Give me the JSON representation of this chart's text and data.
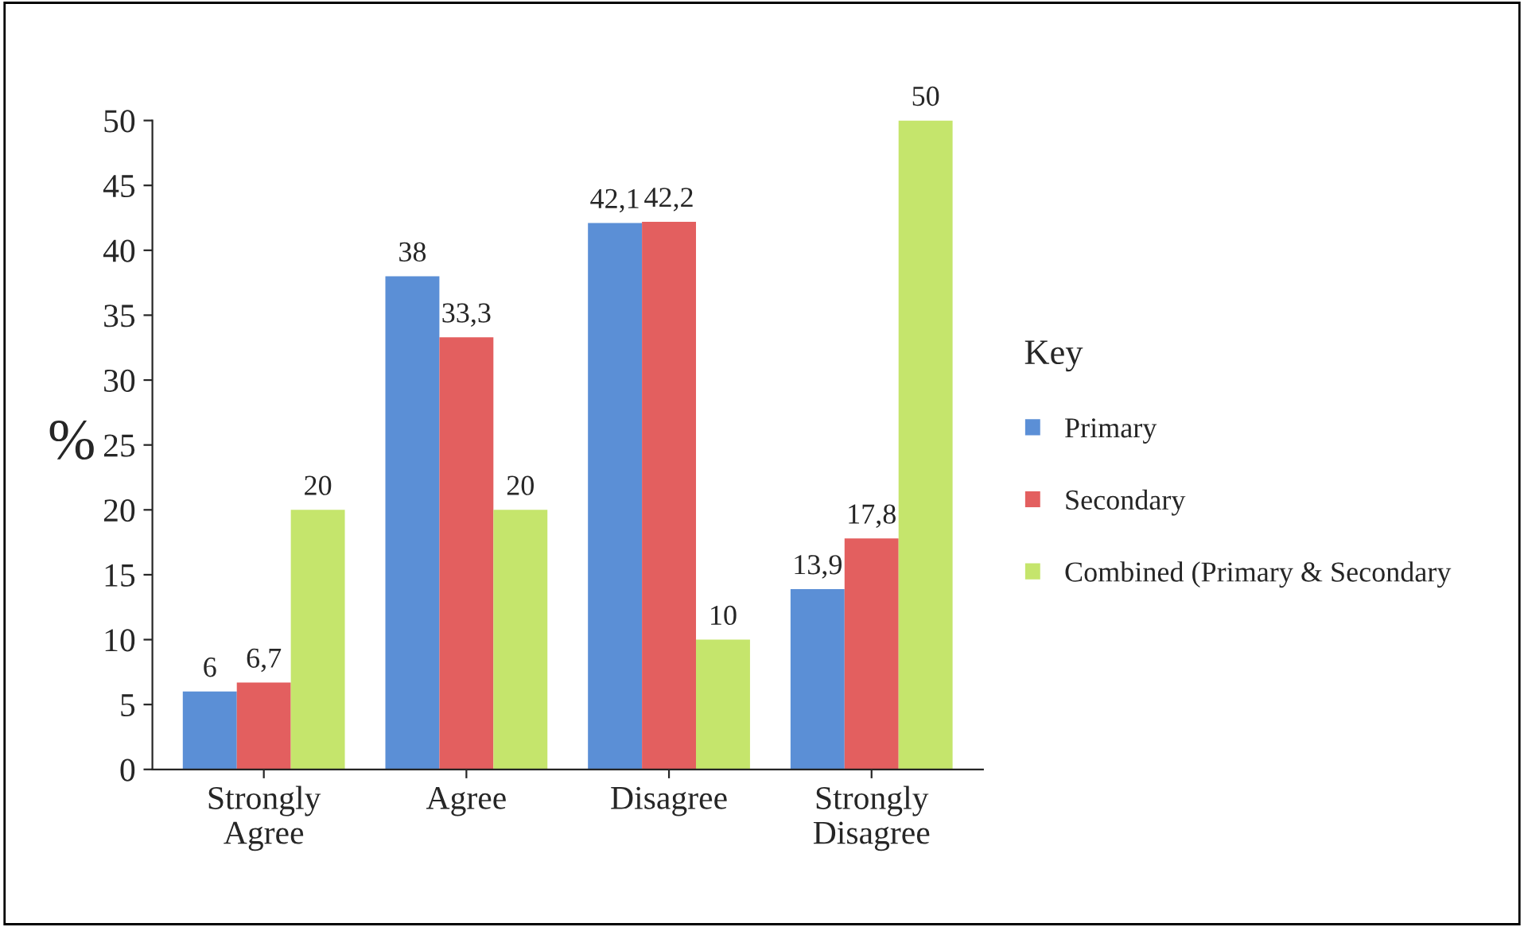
{
  "chart_data": {
    "type": "bar",
    "ylabel": "%",
    "legend_title": "Key",
    "categories": [
      "Strongly\nAgree",
      "Agree",
      "Disagree",
      "Strongly\nDisagree"
    ],
    "series": [
      {
        "name": "Primary",
        "color": "#5b8fd6",
        "values": [
          6,
          38,
          42.1,
          13.9
        ],
        "value_labels": [
          "6",
          "38",
          "42,1",
          "13,9"
        ]
      },
      {
        "name": "Secondary",
        "color": "#e35f5f",
        "values": [
          6.7,
          33.3,
          42.2,
          17.8
        ],
        "value_labels": [
          "6,7",
          "33,3",
          "42,2",
          "17,8"
        ]
      },
      {
        "name": "Combined (Primary & Secondary",
        "color": "#c5e56c",
        "values": [
          20,
          20,
          10,
          50
        ],
        "value_labels": [
          "20",
          "20",
          "10",
          "50"
        ]
      }
    ],
    "ylim": [
      0,
      50
    ],
    "yticks": [
      0,
      5,
      10,
      15,
      20,
      25,
      30,
      35,
      40,
      45,
      50
    ],
    "grid": false,
    "legend": "right"
  }
}
